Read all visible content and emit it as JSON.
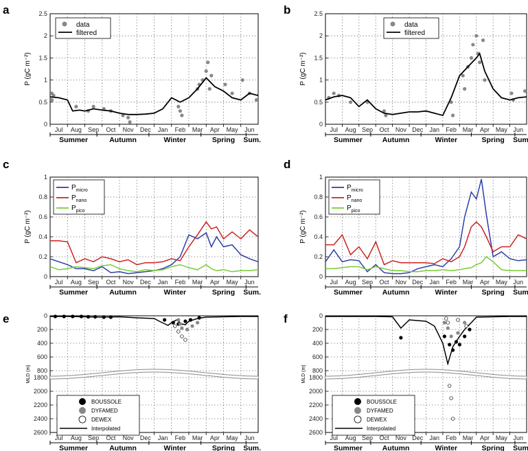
{
  "figure": {
    "months": [
      "Jul",
      "Aug",
      "Sep",
      "Oct",
      "Nov",
      "Dec",
      "Jan",
      "Feb",
      "Mar",
      "Apr",
      "May",
      "Jun"
    ],
    "seasons": [
      "Summer",
      "Autumn",
      "Winter",
      "Spring",
      "Sum."
    ],
    "seasons_b": [
      "Summer",
      "Autumn",
      "Winter",
      "Spring",
      "Sum"
    ]
  },
  "chart_data": [
    {
      "panel": "a",
      "type": "scatter",
      "ylabel": "P (gC m⁻²)",
      "ylim": [
        0,
        2.5
      ],
      "yticks": [
        "0",
        "0.5",
        "1",
        "1.5",
        "2",
        "2.5"
      ],
      "legend": [
        "data",
        "filtered"
      ],
      "legend_position": "top-left",
      "grid": true,
      "series": [
        {
          "name": "filtered",
          "type": "line",
          "color": "#000000",
          "x": [
            0,
            0.5,
            1,
            1.3,
            1.7,
            2,
            2.5,
            3,
            3.5,
            4,
            4.5,
            5,
            5.5,
            6,
            6.5,
            7,
            7.5,
            8,
            8.5,
            9,
            9.5,
            10,
            10.5,
            11,
            11.5,
            12
          ],
          "y": [
            0.62,
            0.6,
            0.55,
            0.3,
            0.32,
            0.3,
            0.35,
            0.32,
            0.3,
            0.25,
            0.22,
            0.22,
            0.23,
            0.25,
            0.35,
            0.6,
            0.5,
            0.6,
            0.8,
            1.05,
            0.85,
            0.75,
            0.6,
            0.55,
            0.7,
            0.65
          ]
        },
        {
          "name": "data",
          "type": "scatter",
          "color": "#888888",
          "x": [
            0.1,
            0.1,
            0.2,
            1.5,
            2.2,
            2.5,
            3.1,
            3.5,
            4.2,
            4.5,
            4.6,
            7.4,
            7.5,
            7.6,
            8.5,
            8.6,
            8.8,
            9,
            9.1,
            9.2,
            9.3,
            10.1,
            10.5,
            11.1,
            11.5,
            11.9
          ],
          "y": [
            0.7,
            0.55,
            0.65,
            0.4,
            0.3,
            0.4,
            0.35,
            0.3,
            0.2,
            0.15,
            0.05,
            0.4,
            0.3,
            0.2,
            0.8,
            0.9,
            1.0,
            1.2,
            1.4,
            0.8,
            1.1,
            0.9,
            0.7,
            1.0,
            0.7,
            0.55
          ]
        }
      ],
      "months": [
        "Jul",
        "Aug",
        "Sep",
        "Oct",
        "Nov",
        "Dec",
        "Jan",
        "Feb",
        "Mar",
        "Apr",
        "May",
        "Jun"
      ],
      "seasons": [
        "Summer",
        "Autumn",
        "Winter",
        "Spring",
        "Sum."
      ]
    },
    {
      "panel": "b",
      "type": "scatter",
      "ylabel": "P (gC m⁻²)",
      "ylim": [
        0,
        2.5
      ],
      "yticks": [
        "0",
        "0.5",
        "1",
        "1.5",
        "2",
        "2.5"
      ],
      "legend": [
        "data",
        "filtered"
      ],
      "legend_position": "top-right",
      "grid": true,
      "series": [
        {
          "name": "filtered",
          "type": "line",
          "color": "#000000",
          "x": [
            0,
            0.5,
            1,
            1.5,
            2,
            2.5,
            3,
            3.5,
            4,
            4.5,
            5,
            5.5,
            6,
            6.5,
            7,
            7.5,
            8,
            8.5,
            9,
            9.2,
            9.5,
            10,
            10.5,
            11,
            11.5,
            12
          ],
          "y": [
            0.55,
            0.62,
            0.65,
            0.6,
            0.4,
            0.55,
            0.35,
            0.25,
            0.22,
            0.25,
            0.28,
            0.28,
            0.3,
            0.25,
            0.2,
            0.6,
            1.1,
            1.3,
            1.5,
            1.6,
            1.2,
            0.8,
            0.6,
            0.55,
            0.6,
            0.62
          ]
        },
        {
          "name": "data",
          "type": "scatter",
          "color": "#888888",
          "x": [
            0.2,
            0.5,
            0.8,
            1.5,
            2.5,
            3.5,
            3.6,
            7.5,
            7.6,
            8.2,
            8.3,
            8.5,
            8.7,
            8.8,
            9,
            9.1,
            9.2,
            9.4,
            9.5,
            11.1,
            11.2,
            11.9
          ],
          "y": [
            0.6,
            0.7,
            0.65,
            0.5,
            0.5,
            0.3,
            0.2,
            0.5,
            0.2,
            1.1,
            0.8,
            1.3,
            1.5,
            1.8,
            2.0,
            1.6,
            1.4,
            1.9,
            1.0,
            0.7,
            0.55,
            0.75
          ]
        }
      ],
      "months": [
        "Jul",
        "Aug",
        "Sep",
        "Oct",
        "Nov",
        "Dec",
        "Jan",
        "Feb",
        "Mar",
        "Apr",
        "May",
        "Jun"
      ],
      "seasons": [
        "Summer",
        "Autumn",
        "Winter",
        "Spring",
        "Sum"
      ]
    },
    {
      "panel": "c",
      "type": "line",
      "ylabel": "P (gC m⁻²)",
      "ylim": [
        0,
        1
      ],
      "yticks": [
        "0",
        "0.2",
        "0.4",
        "0.6",
        "0.8",
        "1"
      ],
      "legend_position": "top-left",
      "grid": true,
      "series": [
        {
          "name": "P",
          "subscript": "micro",
          "color": "#2a3fa8",
          "x": [
            0,
            0.5,
            1,
            1.5,
            2,
            2.5,
            3,
            3.5,
            4,
            4.5,
            5,
            5.5,
            6,
            6.5,
            7,
            7.5,
            8,
            8.5,
            9,
            9.3,
            9.6,
            10,
            10.5,
            11,
            11.5,
            12
          ],
          "y": [
            0.18,
            0.15,
            0.12,
            0.08,
            0.08,
            0.06,
            0.1,
            0.04,
            0.05,
            0.03,
            0.04,
            0.05,
            0.06,
            0.08,
            0.12,
            0.2,
            0.42,
            0.38,
            0.44,
            0.3,
            0.4,
            0.3,
            0.32,
            0.22,
            0.18,
            0.15
          ]
        },
        {
          "name": "P",
          "subscript": "nano",
          "color": "#cc2222",
          "x": [
            0,
            0.5,
            1,
            1.5,
            2,
            2.5,
            3,
            3.5,
            4,
            4.5,
            5,
            5.5,
            6,
            6.5,
            7,
            7.5,
            8,
            8.5,
            9,
            9.3,
            9.6,
            10,
            10.5,
            11,
            11.5,
            12
          ],
          "y": [
            0.36,
            0.36,
            0.35,
            0.14,
            0.18,
            0.15,
            0.2,
            0.18,
            0.15,
            0.17,
            0.12,
            0.14,
            0.14,
            0.15,
            0.18,
            0.16,
            0.3,
            0.42,
            0.55,
            0.48,
            0.5,
            0.38,
            0.45,
            0.38,
            0.47,
            0.4
          ]
        },
        {
          "name": "P",
          "subscript": "pico",
          "color": "#77cc33",
          "x": [
            0,
            0.5,
            1,
            1.5,
            2,
            2.5,
            3,
            3.5,
            4,
            4.5,
            5,
            5.5,
            6,
            6.5,
            7,
            7.5,
            8,
            8.5,
            9,
            9.3,
            9.6,
            10,
            10.5,
            11,
            11.5,
            12
          ],
          "y": [
            0.1,
            0.07,
            0.08,
            0.1,
            0.09,
            0.08,
            0.11,
            0.12,
            0.08,
            0.06,
            0.05,
            0.07,
            0.06,
            0.07,
            0.1,
            0.12,
            0.09,
            0.07,
            0.12,
            0.08,
            0.06,
            0.07,
            0.05,
            0.06,
            0.06,
            0.07
          ]
        }
      ],
      "months": [
        "Jul",
        "Aug",
        "Sep",
        "Oct",
        "Nov",
        "Dec",
        "Jan",
        "Feb",
        "Mar",
        "Apr",
        "May",
        "Jun"
      ],
      "seasons": [
        "Summer",
        "Autumn",
        "Winter",
        "Spring",
        "Sum."
      ]
    },
    {
      "panel": "d",
      "type": "line",
      "ylabel": "P (gC m⁻²)",
      "ylim": [
        0,
        1
      ],
      "yticks": [
        "0",
        "0.2",
        "0.4",
        "0.6",
        "0.8",
        "1"
      ],
      "legend_position": "top-left",
      "grid": true,
      "series": [
        {
          "name": "P",
          "subscript": "micro",
          "color": "#2a3fa8",
          "x": [
            0,
            0.5,
            1,
            1.5,
            2,
            2.5,
            3,
            3.5,
            4,
            4.5,
            5,
            5.5,
            6,
            6.5,
            7,
            7.5,
            8,
            8.3,
            8.7,
            9,
            9.3,
            9.6,
            10,
            10.5,
            11,
            11.5,
            12
          ],
          "y": [
            0.15,
            0.27,
            0.15,
            0.17,
            0.16,
            0.05,
            0.12,
            0.04,
            0.03,
            0.03,
            0.04,
            0.08,
            0.1,
            0.12,
            0.1,
            0.18,
            0.3,
            0.6,
            0.85,
            0.78,
            0.98,
            0.62,
            0.2,
            0.25,
            0.18,
            0.16,
            0.17
          ]
        },
        {
          "name": "P",
          "subscript": "nano",
          "color": "#cc2222",
          "x": [
            0,
            0.5,
            1,
            1.5,
            2,
            2.5,
            3,
            3.5,
            4,
            4.5,
            5,
            5.5,
            6,
            6.5,
            7,
            7.5,
            8,
            8.3,
            8.7,
            9,
            9.3,
            9.6,
            10,
            10.5,
            11,
            11.5,
            12
          ],
          "y": [
            0.32,
            0.32,
            0.42,
            0.22,
            0.3,
            0.18,
            0.35,
            0.12,
            0.16,
            0.14,
            0.14,
            0.14,
            0.14,
            0.13,
            0.18,
            0.15,
            0.2,
            0.3,
            0.5,
            0.55,
            0.5,
            0.4,
            0.25,
            0.3,
            0.3,
            0.42,
            0.38
          ]
        },
        {
          "name": "P",
          "subscript": "pico",
          "color": "#77cc33",
          "x": [
            0,
            0.5,
            1,
            1.5,
            2,
            2.5,
            3,
            3.5,
            4,
            4.5,
            5,
            5.5,
            6,
            6.5,
            7,
            7.5,
            8,
            8.3,
            8.7,
            9,
            9.3,
            9.6,
            10,
            10.5,
            11,
            11.5,
            12
          ],
          "y": [
            0.08,
            0.08,
            0.09,
            0.1,
            0.1,
            0.07,
            0.1,
            0.08,
            0.06,
            0.06,
            0.05,
            0.05,
            0.06,
            0.06,
            0.07,
            0.06,
            0.07,
            0.08,
            0.09,
            0.12,
            0.14,
            0.2,
            0.15,
            0.07,
            0.06,
            0.06,
            0.06
          ]
        }
      ],
      "months": [
        "Jul",
        "Aug",
        "Sep",
        "Oct",
        "Nov",
        "Dec",
        "Jan",
        "Feb",
        "Mar",
        "Apr",
        "May",
        "Jun"
      ],
      "seasons": [
        "Summer",
        "Autumn",
        "Winter",
        "Spring",
        "Sum"
      ]
    },
    {
      "panel": "e",
      "type": "scatter",
      "ylabel": "MLD (m)",
      "ylim_upper": [
        0,
        800
      ],
      "ylim_lower": [
        1800,
        2600
      ],
      "yticks_upper": [
        "0",
        "200",
        "400",
        "600",
        "800"
      ],
      "yticks_lower": [
        "1800",
        "2000",
        "2200",
        "2400",
        "2600"
      ],
      "legend": [
        "BOUSSOLE",
        "DYFAMED",
        "DEWEX",
        "Interpolated"
      ],
      "legend_position": "bottom-left",
      "grid": true,
      "interpolated": {
        "x": [
          0,
          1,
          2,
          3,
          4,
          5,
          6,
          6.3,
          6.8,
          7,
          7.3,
          7.6,
          7.8,
          8,
          8.5,
          9,
          10,
          11,
          12
        ],
        "y": [
          10,
          10,
          15,
          20,
          15,
          30,
          40,
          80,
          140,
          100,
          60,
          120,
          130,
          80,
          40,
          20,
          15,
          10,
          10
        ]
      },
      "boussole": {
        "x": [
          0.3,
          0.8,
          1.3,
          1.8,
          2.2,
          2.6,
          3.1,
          3.5,
          6.6,
          7.1,
          7.4,
          7.8,
          8.1,
          8.6
        ],
        "y": [
          10,
          10,
          10,
          10,
          15,
          15,
          20,
          20,
          60,
          100,
          120,
          80,
          60,
          30
        ]
      },
      "dyfamed": {
        "x": [
          7.4,
          7.5,
          7.6,
          7.9,
          8.2,
          8.5
        ],
        "y": [
          60,
          120,
          180,
          200,
          150,
          100
        ]
      },
      "dewex": {
        "x": [
          7.2,
          7.4,
          7.6,
          7.8
        ],
        "y": [
          150,
          230,
          300,
          350
        ]
      },
      "months": [
        "Jul",
        "Aug",
        "Sep",
        "Oct",
        "Nov",
        "Dec",
        "Jan",
        "Feb",
        "Mar",
        "Apr",
        "May",
        "Jun"
      ],
      "seasons": [
        "Summer",
        "Autumn",
        "Winter",
        "Spring",
        "Sum."
      ]
    },
    {
      "panel": "f",
      "type": "scatter",
      "ylabel": "MLD (m)",
      "ylim_upper": [
        0,
        800
      ],
      "ylim_lower": [
        1800,
        2600
      ],
      "yticks_upper": [
        "0",
        "200",
        "400",
        "600",
        "800"
      ],
      "yticks_lower": [
        "1800",
        "2000",
        "2200",
        "2400",
        "2600"
      ],
      "legend": [
        "BOUSSOLE",
        "DYFAMED",
        "DEWEX",
        "Interpolated"
      ],
      "legend_position": "bottom-left",
      "grid": true,
      "interpolated": {
        "x": [
          0,
          1,
          2,
          3,
          4,
          4.5,
          5,
          5.5,
          6,
          6.5,
          7,
          7.3,
          7.6,
          8,
          8.3,
          8.7,
          9,
          10,
          11,
          12
        ],
        "y": [
          10,
          10,
          10,
          10,
          15,
          180,
          60,
          70,
          80,
          150,
          400,
          700,
          450,
          300,
          200,
          100,
          20,
          15,
          10,
          10
        ]
      },
      "boussole": {
        "x": [
          4.5,
          7.1,
          7.4,
          7.6,
          7.8,
          8.0,
          8.3,
          8.6
        ],
        "y": [
          320,
          300,
          420,
          500,
          380,
          420,
          300,
          200
        ]
      },
      "dyfamed": {
        "x": [
          7.1,
          7.3,
          7.5,
          7.9,
          8.3
        ],
        "y": [
          100,
          180,
          300,
          250,
          100
        ]
      },
      "dewex": {
        "x": [
          7.2,
          7.3,
          7.4,
          7.5,
          7.6,
          7.9,
          8.4
        ],
        "y": [
          40,
          100,
          1920,
          2100,
          2400,
          60,
          150
        ]
      },
      "months": [
        "Jul",
        "Aug",
        "Sep",
        "Oct",
        "Nov",
        "Dec",
        "Jan",
        "Feb",
        "Mar",
        "Apr",
        "May",
        "Jun"
      ],
      "seasons": [
        "Summer",
        "Autumn",
        "Winter",
        "Spring",
        "Sum"
      ]
    }
  ]
}
